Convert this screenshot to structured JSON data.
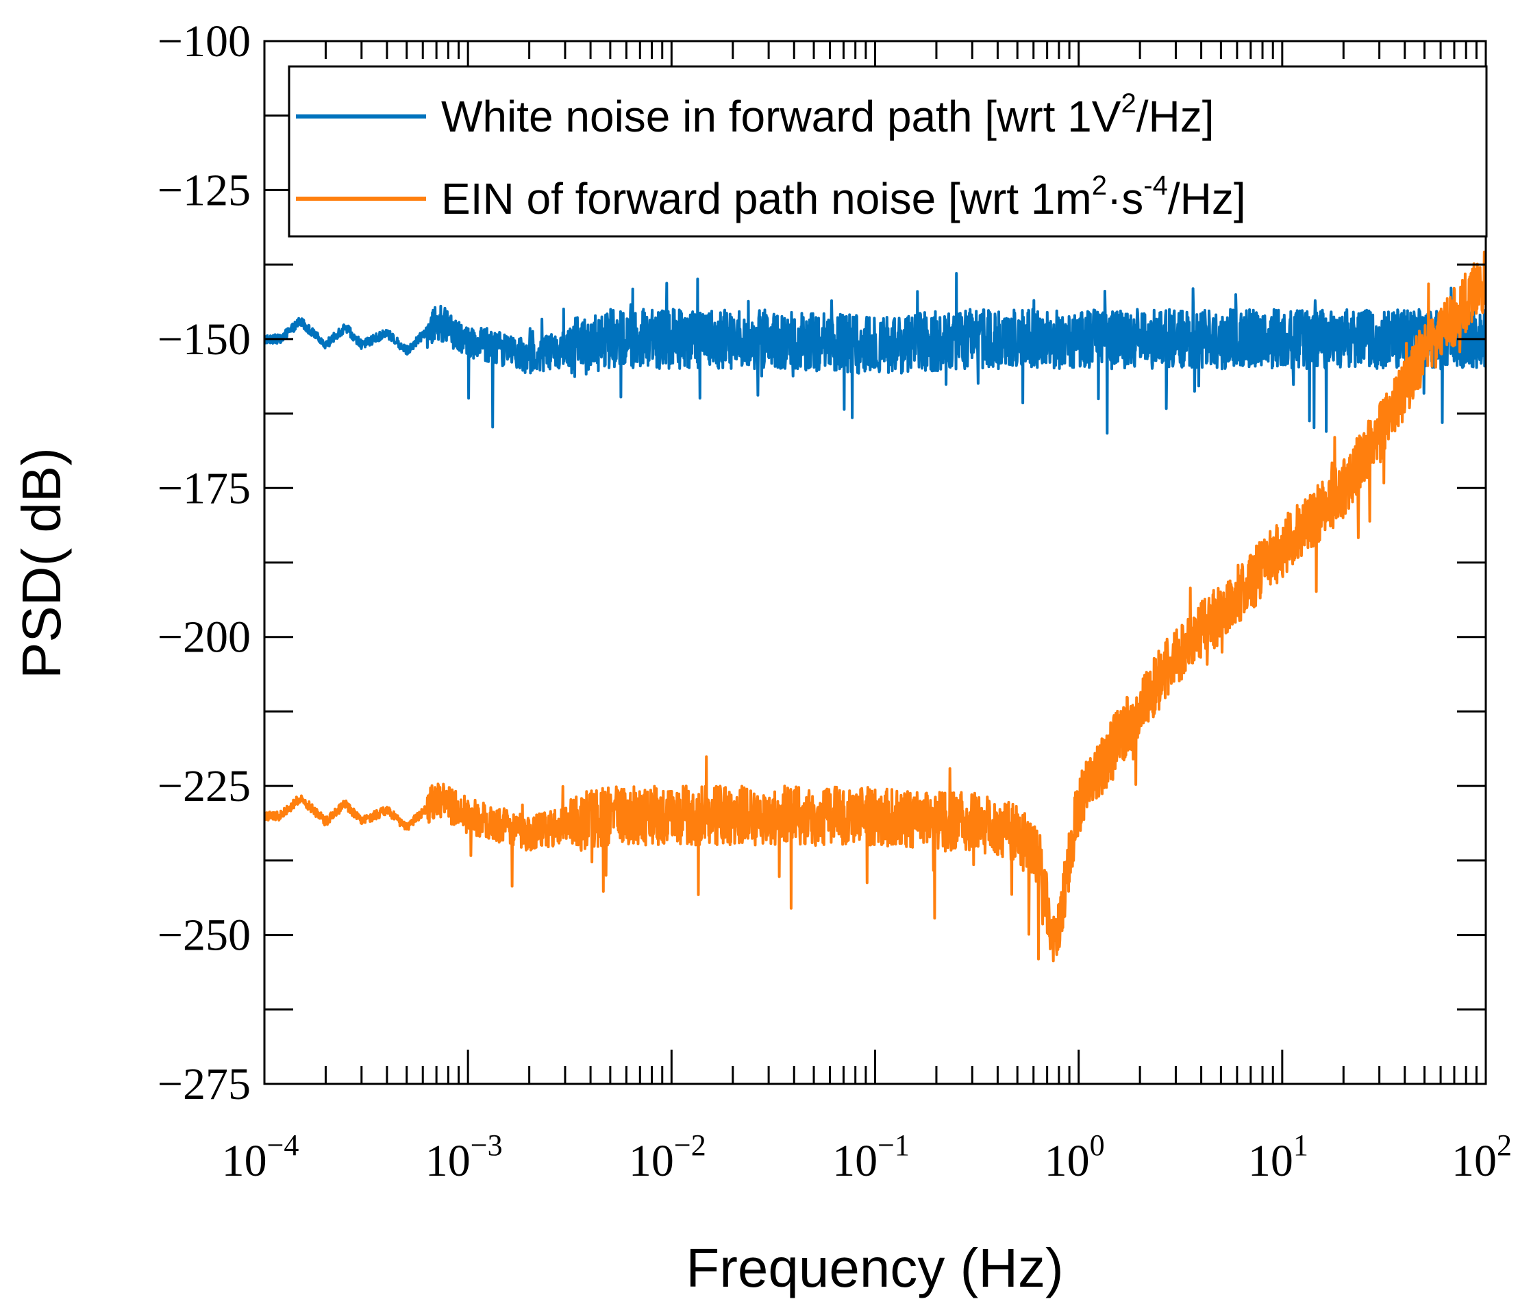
{
  "chart_data": {
    "type": "line",
    "title": "",
    "xlabel": "Frequency (Hz)",
    "ylabel": "PSD( dB)",
    "xscale": "log",
    "xlim": [
      0.0001,
      100
    ],
    "ylim": [
      -275,
      -100
    ],
    "x_tick_labels": [
      {
        "base": "10",
        "exp": "−4"
      },
      {
        "base": "10",
        "exp": "−3"
      },
      {
        "base": "10",
        "exp": "−2"
      },
      {
        "base": "10",
        "exp": "−1"
      },
      {
        "base": "10",
        "exp": "0"
      },
      {
        "base": "10",
        "exp": "1"
      },
      {
        "base": "10",
        "exp": "2"
      }
    ],
    "x_ticks": [
      0.0001,
      0.001,
      0.01,
      0.1,
      1,
      10,
      100
    ],
    "y_ticks": [
      -100,
      -125,
      -150,
      -175,
      -200,
      -225,
      -250,
      -275
    ],
    "y_tick_labels": [
      "−100",
      "−125",
      "−150",
      "−175",
      "−200",
      "−225",
      "−250",
      "−275"
    ],
    "grid": false,
    "legend_position": "top-right",
    "series": [
      {
        "name": "White noise in forward path [wrt 1V2/Hz]",
        "legend_text": "White noise in forward path [wrt 1V",
        "legend_sup": "2",
        "legend_tail": "/Hz]",
        "color": "#0072BD",
        "x": [
          0.0001,
          0.00012,
          0.00015,
          0.0002,
          0.00025,
          0.0003,
          0.0004,
          0.0005,
          0.0007,
          0.001,
          0.002,
          0.005,
          0.01,
          0.03,
          0.1,
          0.3,
          1,
          3,
          10,
          30,
          100
        ],
        "y": [
          -150,
          -150,
          -147,
          -151,
          -148,
          -151,
          -149,
          -152,
          -147,
          -150,
          -153,
          -150,
          -150,
          -150,
          -151,
          -150,
          -150,
          -150,
          -150,
          -150,
          -150
        ],
        "noise": {
          "mean": -150,
          "spread": 5,
          "dip_min": -163
        }
      },
      {
        "name": "EIN of forward path noise [wrt 1m2·s-4/Hz]",
        "legend_text": "EIN of forward path noise [wrt 1m",
        "legend_sup": "2",
        "legend_mid": "·s",
        "legend_sup2": "-4",
        "legend_tail": "/Hz]",
        "color": "#FF7F0E",
        "x": [
          0.0001,
          0.00012,
          0.00015,
          0.0002,
          0.00025,
          0.0003,
          0.0004,
          0.0005,
          0.0007,
          0.001,
          0.002,
          0.005,
          0.01,
          0.03,
          0.1,
          0.2,
          0.3,
          0.5,
          0.65,
          0.75,
          0.8,
          0.9,
          1,
          1.5,
          2,
          3,
          5,
          10,
          20,
          30,
          50,
          100
        ],
        "y": [
          -230,
          -230,
          -227,
          -231,
          -228,
          -231,
          -229,
          -232,
          -227,
          -230,
          -233,
          -230,
          -230,
          -230,
          -230,
          -231,
          -231,
          -233,
          -238,
          -252,
          -249,
          -237,
          -228,
          -218,
          -212,
          -203,
          -196,
          -185,
          -175,
          -166,
          -152,
          -140
        ],
        "noise": {
          "spread": 5,
          "dip_min": -262
        }
      }
    ]
  }
}
